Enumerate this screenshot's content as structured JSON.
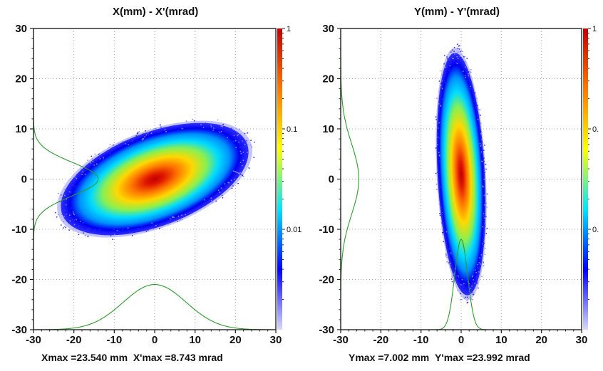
{
  "chart_data": [
    {
      "type": "heatmap",
      "title": "X(mm) - X'(mrad)",
      "footer": {
        "max_x_label": "Xmax =23.540 mm",
        "max_y_label": "X'max =8.743 mrad"
      },
      "xlim": [
        -30,
        30
      ],
      "ylim": [
        -30,
        30
      ],
      "x_ticks": [
        "-30",
        "-20",
        "-10",
        "0",
        "10",
        "20",
        "30"
      ],
      "y_ticks": [
        "30",
        "20",
        "10",
        "0",
        "-10",
        "-20",
        "-30"
      ],
      "grid": true,
      "log_scale": true,
      "colorbar": {
        "scale": "log",
        "range": [
          0.001,
          1
        ],
        "tick_labels": [
          "1",
          "0.1",
          "0.01"
        ],
        "colors": [
          "#d8d8ff",
          "#0000ff",
          "#00e5ff",
          "#ffff00",
          "#ff7700",
          "#c00000"
        ]
      },
      "distribution": {
        "center": [
          0,
          0
        ],
        "rms_x": 7.9,
        "rms_y": 3.0,
        "tilt_deg": 21,
        "peak_density": 1
      },
      "profile_x": {
        "peak_x": 0,
        "peak_value_y": -21,
        "base_value_y": -30,
        "rms": 7.8
      },
      "profile_y": {
        "peak_y": 0,
        "peak_value_x": -14,
        "base_value_x": -30,
        "rms": 3.3
      }
    },
    {
      "type": "heatmap",
      "title": "Y(mm) - Y'(mrad)",
      "footer": {
        "max_x_label": "Ymax =7.002 mm",
        "max_y_label": "Y'max =23.992 mrad"
      },
      "xlim": [
        -30,
        30
      ],
      "ylim": [
        -30,
        30
      ],
      "x_ticks": [
        "-30",
        "-20",
        "-10",
        "0",
        "10",
        "20",
        "30"
      ],
      "y_ticks": [
        "30",
        "20",
        "10",
        "0",
        "-10",
        "-20",
        "-30"
      ],
      "grid": true,
      "log_scale": true,
      "colorbar": {
        "scale": "log",
        "range": [
          0.001,
          1
        ],
        "tick_labels": [
          "1",
          "0.",
          "0."
        ],
        "colors": [
          "#d8d8ff",
          "#0000ff",
          "#00e5ff",
          "#ffff00",
          "#ff7700",
          "#c00000"
        ]
      },
      "distribution": {
        "center": [
          0,
          1
        ],
        "rms_x": 1.9,
        "rms_y": 7.8,
        "tilt_deg": 3,
        "peak_density": 1
      },
      "profile_x": {
        "peak_x": 0,
        "peak_value_y": -12,
        "base_value_y": -30,
        "rms": 1.6
      },
      "profile_y": {
        "peak_y": 0,
        "peak_value_x": -25.5,
        "base_value_x": -30,
        "rms": 7.0
      }
    }
  ]
}
